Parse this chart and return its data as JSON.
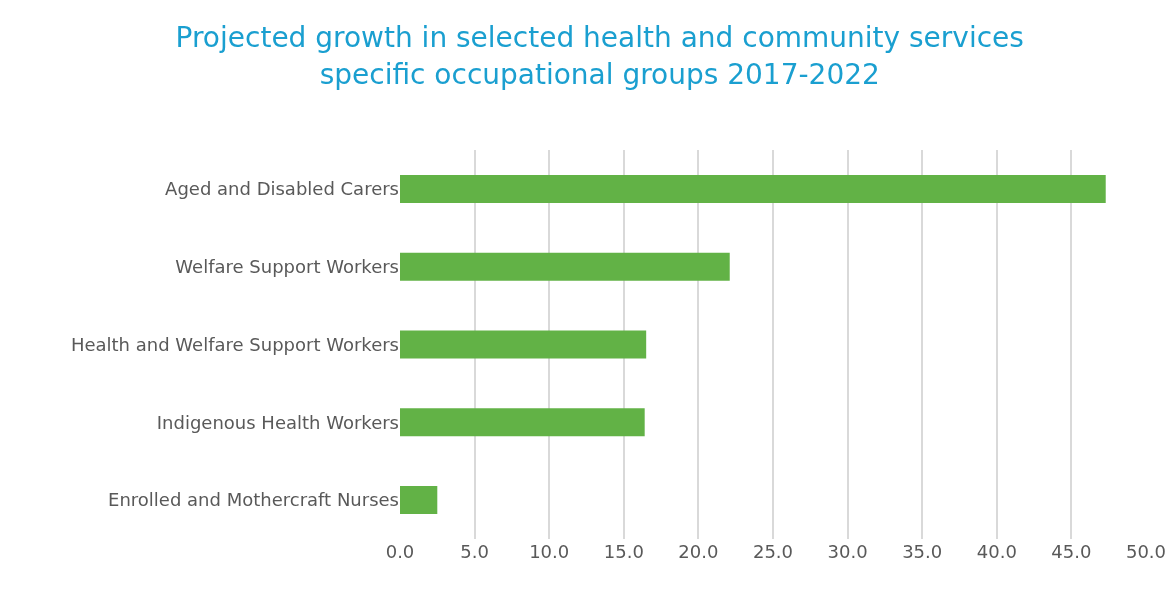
{
  "chart_data": {
    "type": "bar",
    "orientation": "horizontal",
    "title": "Projected growth in selected health and community services\nspecific occupational groups 2017-2022",
    "categories": [
      "Aged and Disabled Carers",
      "Welfare Support Workers",
      "Health and Welfare Support Workers",
      "Indigenous Health Workers",
      "Enrolled and Mothercraft Nurses"
    ],
    "values": [
      47.3,
      22.1,
      16.5,
      16.4,
      2.5
    ],
    "color": "#62b246",
    "xlim": [
      0,
      50
    ],
    "xticks": [
      {
        "value": 0,
        "label": "0.0"
      },
      {
        "value": 5,
        "label": "5.0"
      },
      {
        "value": 10,
        "label": "10.0"
      },
      {
        "value": 15,
        "label": "15.0"
      },
      {
        "value": 20,
        "label": "20.0"
      },
      {
        "value": 25,
        "label": "25.0"
      },
      {
        "value": 30,
        "label": "30.0"
      },
      {
        "value": 35,
        "label": "35.0"
      },
      {
        "value": 40,
        "label": "40.0"
      },
      {
        "value": 45,
        "label": "45.0"
      },
      {
        "value": 50,
        "label": "50.0"
      }
    ],
    "grid": "x",
    "legend": false
  }
}
